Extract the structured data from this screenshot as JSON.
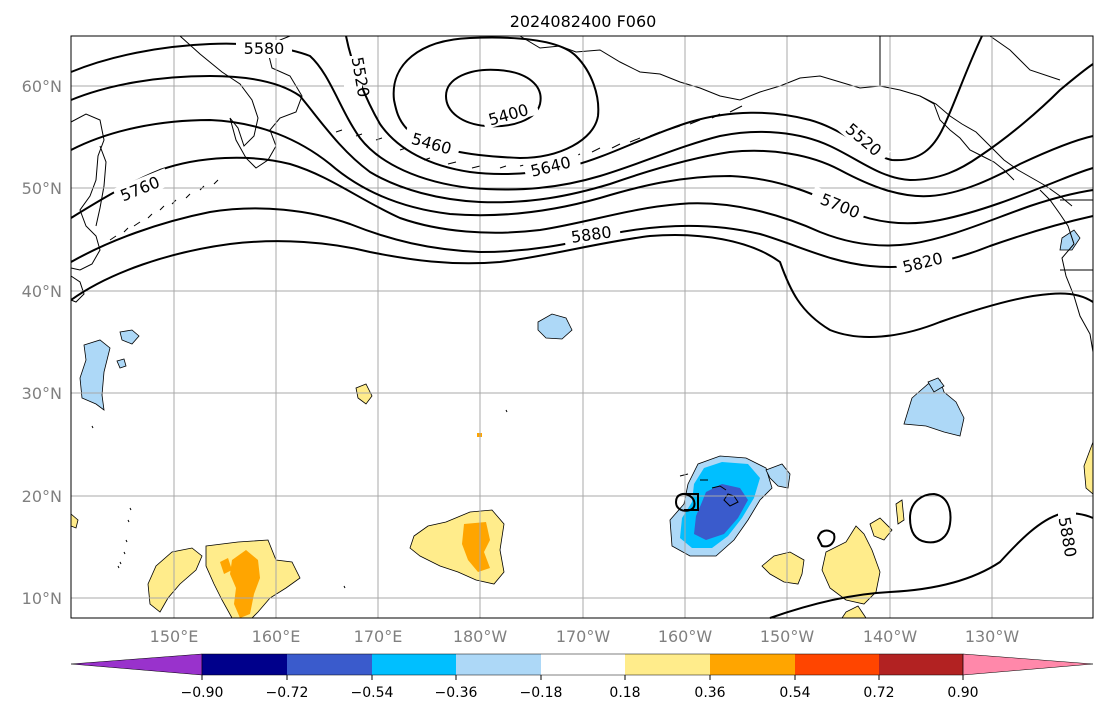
{
  "map": {
    "title": "2024082400 F060",
    "lat_labels": [
      "60°N",
      "50°N",
      "40°N",
      "30°N",
      "20°N",
      "10°N"
    ],
    "lon_labels": [
      "150°E",
      "160°E",
      "170°E",
      "180°W",
      "170°W",
      "160°W",
      "150°W",
      "140°W",
      "130°W"
    ],
    "contour_labels": [
      "5580",
      "5520",
      "5400",
      "5460",
      "5640",
      "5760",
      "5520",
      "5700",
      "5880",
      "5820",
      "5880"
    ],
    "colors": {
      "neg_090": "#9932cc",
      "neg_072": "#00008b",
      "neg_054": "#3a5bcc",
      "neg_036": "#00bfff",
      "neg_018": "#add8f7",
      "neutral": "#ffffff",
      "pos_018": "#ffec8b",
      "pos_036": "#ffa500",
      "pos_054": "#ff4500",
      "pos_072": "#b22222",
      "pos_090": "#ff88aa"
    }
  },
  "colorbar": {
    "ticks": [
      "−0.90",
      "−0.72",
      "−0.54",
      "−0.36",
      "−0.18",
      "0.18",
      "0.36",
      "0.54",
      "0.72",
      "0.90"
    ]
  }
}
